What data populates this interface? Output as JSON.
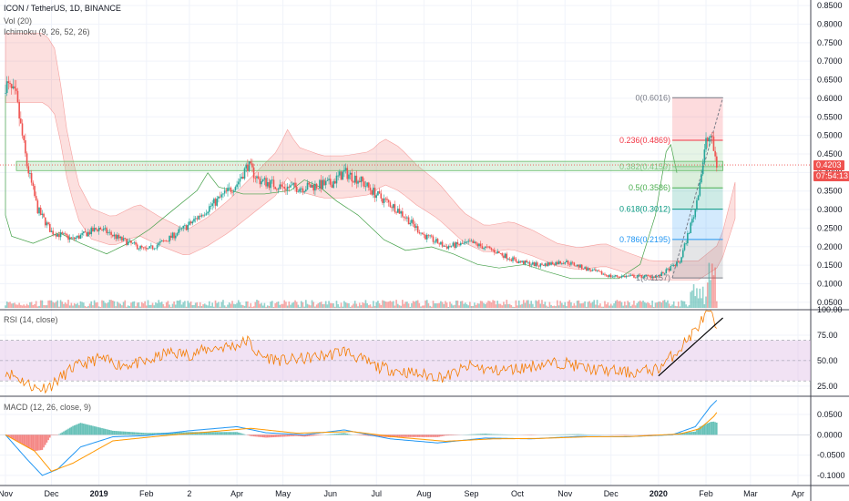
{
  "header": {
    "symbol_line": "ICON / TetherUS, 1D, BINANCE",
    "vol_label": "Vol (20)",
    "ichimoku_label": "Ichimoku (9, 26, 52, 26)"
  },
  "rsi_label": "RSI (14, close)",
  "macd_label": "MACD (12, 26, close, 9)",
  "price_badge": {
    "price": "0.4203",
    "countdown": "07:54:13"
  },
  "colors": {
    "up": "#26a69a",
    "down": "#ef5350",
    "rsi": "#f57c00",
    "macd": "#2196f3",
    "signal": "#ff9800",
    "band": "#e1bee7",
    "badge": "#ef5350"
  },
  "fib_levels": [
    {
      "label": "0(0.6016)",
      "value": 0.6016,
      "color": "#787b86"
    },
    {
      "label": "0.236(0.4869)",
      "value": 0.4869,
      "color": "#f23645"
    },
    {
      "label": "0.382(0.4159)",
      "value": 0.4159,
      "color": "#81c784"
    },
    {
      "label": "0.5(0.3586)",
      "value": 0.3586,
      "color": "#4caf50"
    },
    {
      "label": "0.618(0.3012)",
      "value": 0.3012,
      "color": "#089981"
    },
    {
      "label": "0.786(0.2195)",
      "value": 0.2195,
      "color": "#2196f3"
    },
    {
      "label": "1(0.1157)",
      "value": 0.1157,
      "color": "#787b86"
    }
  ],
  "chart_data": [
    {
      "type": "candlestick",
      "title": "ICON / TetherUS, 1D, BINANCE",
      "ylim": [
        0.03,
        0.865
      ],
      "y_ticks": [
        0.05,
        0.1,
        0.15,
        0.2,
        0.25,
        0.3,
        0.35,
        0.4,
        0.45,
        0.5,
        0.55,
        0.6,
        0.65,
        0.7,
        0.75,
        0.8,
        0.85
      ],
      "y_tick_labels": [
        "0.0500",
        "0.1000",
        "0.1500",
        "0.2000",
        "0.2500",
        "0.3000",
        "0.3500",
        "0.4000",
        "0.4500",
        "0.5000",
        "0.5500",
        "0.6000",
        "0.6500",
        "0.7000",
        "0.7500",
        "0.8000",
        "0.8500"
      ],
      "x_ticks": [
        "Nov",
        "Dec",
        "2019",
        "Feb",
        "2",
        "Apr",
        "May",
        "Jun",
        "Jul",
        "Aug",
        "Sep",
        "Oct",
        "Nov",
        "Dec",
        "2020",
        "Feb",
        "Mar",
        "Apr"
      ],
      "close_path": [
        [
          "2018-11-01",
          0.64
        ],
        [
          "2018-11-08",
          0.6
        ],
        [
          "2018-11-15",
          0.42
        ],
        [
          "2018-11-22",
          0.3
        ],
        [
          "2018-12-01",
          0.24
        ],
        [
          "2018-12-15",
          0.22
        ],
        [
          "2019-01-01",
          0.25
        ],
        [
          "2019-01-15",
          0.22
        ],
        [
          "2019-02-01",
          0.19
        ],
        [
          "2019-02-15",
          0.22
        ],
        [
          "2019-03-01",
          0.26
        ],
        [
          "2019-03-15",
          0.31
        ],
        [
          "2019-04-01",
          0.37
        ],
        [
          "2019-04-08",
          0.42
        ],
        [
          "2019-04-15",
          0.38
        ],
        [
          "2019-05-01",
          0.36
        ],
        [
          "2019-05-15",
          0.36
        ],
        [
          "2019-06-01",
          0.37
        ],
        [
          "2019-06-10",
          0.4
        ],
        [
          "2019-06-20",
          0.38
        ],
        [
          "2019-07-01",
          0.34
        ],
        [
          "2019-07-15",
          0.3
        ],
        [
          "2019-08-01",
          0.23
        ],
        [
          "2019-08-15",
          0.2
        ],
        [
          "2019-09-01",
          0.21
        ],
        [
          "2019-09-15",
          0.19
        ],
        [
          "2019-10-01",
          0.16
        ],
        [
          "2019-10-15",
          0.15
        ],
        [
          "2019-11-01",
          0.16
        ],
        [
          "2019-11-15",
          0.14
        ],
        [
          "2019-12-01",
          0.12
        ],
        [
          "2019-12-15",
          0.12
        ],
        [
          "2020-01-01",
          0.12
        ],
        [
          "2020-01-15",
          0.16
        ],
        [
          "2020-01-25",
          0.3
        ],
        [
          "2020-02-01",
          0.48
        ],
        [
          "2020-02-04",
          0.5
        ],
        [
          "2020-02-08",
          0.4203
        ]
      ],
      "fib_levels": [
        0.6016,
        0.4869,
        0.4159,
        0.3586,
        0.3012,
        0.2195,
        0.1157
      ],
      "horizontal_zone": [
        0.405,
        0.43
      ],
      "last_price": 0.4203
    },
    {
      "type": "line",
      "title": "RSI (14, close)",
      "ylim": [
        15,
        100
      ],
      "y_ticks": [
        25,
        50,
        75,
        100
      ],
      "y_tick_labels": [
        "25.00",
        "50.00",
        "75.00",
        "100.00"
      ],
      "band": [
        30,
        70
      ],
      "series": [
        {
          "values": [
            [
              "2018-11-01",
              40
            ],
            [
              "2018-11-22",
              22
            ],
            [
              "2018-12-01",
              26
            ],
            [
              "2018-12-15",
              43
            ],
            [
              "2019-01-01",
              52
            ],
            [
              "2019-01-15",
              46
            ],
            [
              "2019-02-01",
              48
            ],
            [
              "2019-02-15",
              58
            ],
            [
              "2019-03-01",
              56
            ],
            [
              "2019-03-15",
              62
            ],
            [
              "2019-04-01",
              65
            ],
            [
              "2019-04-08",
              70
            ],
            [
              "2019-04-15",
              55
            ],
            [
              "2019-05-01",
              50
            ],
            [
              "2019-05-15",
              52
            ],
            [
              "2019-06-01",
              56
            ],
            [
              "2019-06-10",
              60
            ],
            [
              "2019-06-20",
              52
            ],
            [
              "2019-07-01",
              44
            ],
            [
              "2019-07-15",
              40
            ],
            [
              "2019-08-01",
              36
            ],
            [
              "2019-08-15",
              34
            ],
            [
              "2019-09-01",
              45
            ],
            [
              "2019-09-15",
              40
            ],
            [
              "2019-10-01",
              42
            ],
            [
              "2019-10-15",
              46
            ],
            [
              "2019-11-01",
              48
            ],
            [
              "2019-11-15",
              42
            ],
            [
              "2019-12-01",
              40
            ],
            [
              "2019-12-15",
              38
            ],
            [
              "2020-01-01",
              42
            ],
            [
              "2020-01-15",
              62
            ],
            [
              "2020-01-25",
              80
            ],
            [
              "2020-02-01",
              95
            ],
            [
              "2020-02-04",
              97
            ],
            [
              "2020-02-08",
              80
            ]
          ]
        }
      ],
      "trendline": [
        [
          "2020-01-01",
          35
        ],
        [
          "2020-02-12",
          92
        ]
      ]
    },
    {
      "type": "bar+line",
      "title": "MACD (12, 26, close, 9)",
      "ylim": [
        -0.125,
        0.095
      ],
      "y_ticks": [
        0.05,
        0.0,
        -0.05,
        -0.1
      ],
      "y_tick_labels": [
        "0.0500",
        "0.0000",
        "-0.0500",
        "-0.1000"
      ],
      "series": [
        {
          "values": [
            [
              "2018-11-01",
              0.0
            ],
            [
              "2018-11-15",
              -0.06
            ],
            [
              "2018-11-25",
              -0.1
            ],
            [
              "2018-12-05",
              -0.085
            ],
            [
              "2018-12-20",
              -0.03
            ],
            [
              "2019-01-10",
              -0.005
            ],
            [
              "2019-02-01",
              -0.002
            ],
            [
              "2019-03-01",
              0.01
            ],
            [
              "2019-04-01",
              0.02
            ],
            [
              "2019-04-20",
              0.005
            ],
            [
              "2019-05-15",
              0.0
            ],
            [
              "2019-06-10",
              0.012
            ],
            [
              "2019-07-10",
              -0.01
            ],
            [
              "2019-08-10",
              -0.02
            ],
            [
              "2019-09-10",
              -0.008
            ],
            [
              "2019-10-10",
              -0.01
            ],
            [
              "2019-11-10",
              -0.004
            ],
            [
              "2019-12-10",
              -0.005
            ],
            [
              "2020-01-10",
              0.0
            ],
            [
              "2020-01-25",
              0.02
            ],
            [
              "2020-02-04",
              0.07
            ],
            [
              "2020-02-08",
              0.085
            ]
          ]
        },
        {
          "values": [
            [
              "2018-11-01",
              0.0
            ],
            [
              "2018-11-20",
              -0.04
            ],
            [
              "2018-12-01",
              -0.09
            ],
            [
              "2018-12-15",
              -0.07
            ],
            [
              "2019-01-10",
              -0.015
            ],
            [
              "2019-02-10",
              -0.003
            ],
            [
              "2019-03-10",
              0.006
            ],
            [
              "2019-04-10",
              0.016
            ],
            [
              "2019-05-10",
              0.004
            ],
            [
              "2019-06-15",
              0.008
            ],
            [
              "2019-07-15",
              -0.006
            ],
            [
              "2019-08-15",
              -0.016
            ],
            [
              "2019-09-15",
              -0.01
            ],
            [
              "2019-10-15",
              -0.009
            ],
            [
              "2019-11-15",
              -0.005
            ],
            [
              "2019-12-15",
              -0.004
            ],
            [
              "2020-01-15",
              0.002
            ],
            [
              "2020-01-28",
              0.015
            ],
            [
              "2020-02-06",
              0.045
            ],
            [
              "2020-02-08",
              0.055
            ]
          ]
        }
      ]
    }
  ]
}
